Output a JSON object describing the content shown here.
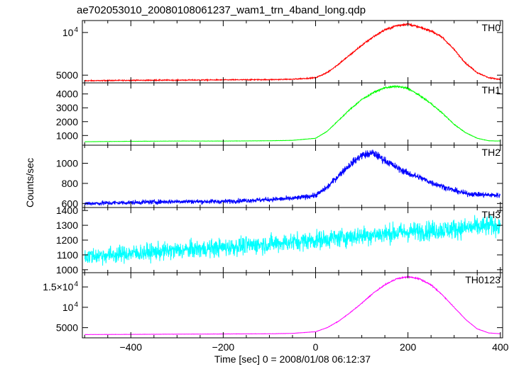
{
  "chart_data": {
    "type": "line",
    "title": "ae702053010_20080108061237_wam1_trn_4band_long.qdp",
    "ylabel": "Counts/sec",
    "xlabel": "Time [sec] 0 = 2008/01/08 06:12:37",
    "x_ticks": [
      -400,
      -200,
      0,
      200,
      400
    ],
    "x_tick_labels": [
      "−400",
      "−200",
      "0",
      "200",
      "400"
    ],
    "xlim": [
      -505,
      405
    ],
    "grid": false,
    "panels": [
      {
        "name": "TH0",
        "color": "#ff0000",
        "ylim": [
          4100,
          11400
        ],
        "yticks": [
          {
            "value": 5000,
            "label": "5000"
          },
          {
            "value": 10000,
            "label": "10",
            "sup": "4"
          }
        ],
        "noise": 0.012,
        "x": [
          -500,
          -400,
          -300,
          -200,
          -100,
          -50,
          0,
          25,
          50,
          75,
          100,
          125,
          150,
          175,
          200,
          225,
          250,
          275,
          300,
          325,
          350,
          375,
          400
        ],
        "y": [
          4350,
          4400,
          4420,
          4450,
          4480,
          4520,
          4700,
          5300,
          6300,
          7400,
          8500,
          9500,
          10300,
          10800,
          11000,
          10600,
          10200,
          9400,
          8000,
          6400,
          5300,
          4700,
          4500
        ]
      },
      {
        "name": "TH1",
        "color": "#00ff00",
        "ylim": [
          300,
          4800
        ],
        "yticks": [
          {
            "value": 1000,
            "label": "1000"
          },
          {
            "value": 2000,
            "label": "2000"
          },
          {
            "value": 3000,
            "label": "3000"
          },
          {
            "value": 4000,
            "label": "4000"
          }
        ],
        "noise": 0.015,
        "x": [
          -500,
          -400,
          -300,
          -200,
          -100,
          -50,
          0,
          25,
          50,
          75,
          100,
          125,
          150,
          175,
          200,
          225,
          250,
          275,
          300,
          325,
          350,
          375,
          400
        ],
        "y": [
          550,
          580,
          600,
          600,
          620,
          650,
          800,
          1300,
          2100,
          2900,
          3600,
          4100,
          4450,
          4550,
          4400,
          3900,
          3300,
          2600,
          1800,
          1200,
          800,
          620,
          600
        ]
      },
      {
        "name": "TH2",
        "color": "#0000ff",
        "ylim": [
          560,
          1180
        ],
        "yticks": [
          {
            "value": 600,
            "label": "600"
          },
          {
            "value": 800,
            "label": "800"
          },
          {
            "value": 1000,
            "label": "1000"
          }
        ],
        "noise": 0.035,
        "x": [
          -500,
          -400,
          -300,
          -200,
          -100,
          -50,
          0,
          25,
          50,
          75,
          100,
          125,
          150,
          175,
          200,
          225,
          250,
          275,
          300,
          325,
          350,
          375,
          400
        ],
        "y": [
          600,
          610,
          620,
          620,
          640,
          650,
          680,
          760,
          880,
          990,
          1080,
          1100,
          1030,
          960,
          900,
          860,
          810,
          770,
          730,
          700,
          690,
          685,
          680
        ]
      },
      {
        "name": "TH3",
        "color": "#00ffff",
        "ylim": [
          980,
          1420
        ],
        "yticks": [
          {
            "value": 1000,
            "label": "1000"
          },
          {
            "value": 1100,
            "label": "1100"
          },
          {
            "value": 1200,
            "label": "1200"
          },
          {
            "value": 1300,
            "label": "1300"
          },
          {
            "value": 1400,
            "label": "1400"
          }
        ],
        "noise": 0.05,
        "x": [
          -500,
          -400,
          -300,
          -200,
          -100,
          0,
          100,
          200,
          300,
          400
        ],
        "y": [
          1090,
          1110,
          1130,
          1150,
          1175,
          1200,
          1230,
          1255,
          1275,
          1300
        ]
      },
      {
        "name": "TH0123",
        "color": "#ff00ff",
        "ylim": [
          2500,
          18500
        ],
        "yticks": [
          {
            "value": 5000,
            "label": "5000"
          },
          {
            "value": 10000,
            "label": "10",
            "sup": "4"
          },
          {
            "value": 15000,
            "label": "1.5×10",
            "sup": "4"
          }
        ],
        "noise": 0.008,
        "x": [
          -500,
          -400,
          -300,
          -200,
          -100,
          -50,
          0,
          25,
          50,
          75,
          100,
          125,
          150,
          175,
          200,
          225,
          250,
          275,
          300,
          325,
          350,
          375,
          400
        ],
        "y": [
          3300,
          3350,
          3400,
          3450,
          3500,
          3600,
          4000,
          5000,
          6600,
          8700,
          11000,
          13500,
          15500,
          17000,
          17500,
          17000,
          15500,
          13000,
          10000,
          7000,
          4700,
          3700,
          3500
        ]
      }
    ]
  }
}
